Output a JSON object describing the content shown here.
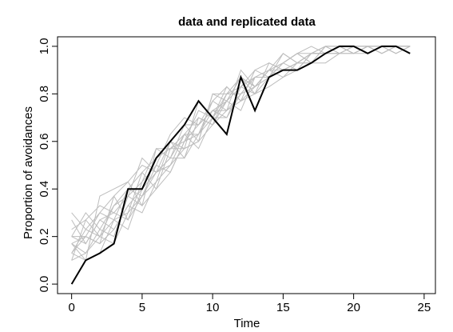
{
  "chart_data": {
    "type": "line",
    "title": "data and replicated data",
    "xlabel": "Time",
    "ylabel": "Proportion of avoidances",
    "xlim": [
      -1,
      25.8
    ],
    "ylim": [
      -0.04,
      1.04
    ],
    "xticks": [
      0,
      5,
      10,
      15,
      20,
      25
    ],
    "yticks": [
      0.0,
      0.2,
      0.4,
      0.6,
      0.8,
      1.0
    ],
    "xtick_labels": [
      "0",
      "5",
      "10",
      "15",
      "20",
      "25"
    ],
    "ytick_labels": [
      "0.0",
      "0.2",
      "0.4",
      "0.6",
      "0.8",
      "1.0"
    ],
    "grid": false,
    "colors": {
      "observed": "#000000",
      "replicated": "#bdbdbd"
    },
    "x": [
      0,
      1,
      2,
      3,
      4,
      5,
      6,
      7,
      8,
      9,
      10,
      11,
      12,
      13,
      14,
      15,
      16,
      17,
      18,
      19,
      20,
      21,
      22,
      23,
      24
    ],
    "observed": [
      0.0,
      0.1,
      0.13,
      0.17,
      0.4,
      0.4,
      0.53,
      0.6,
      0.67,
      0.77,
      0.7,
      0.63,
      0.87,
      0.73,
      0.87,
      0.9,
      0.9,
      0.93,
      0.97,
      1.0,
      1.0,
      0.97,
      1.0,
      1.0,
      0.97
    ],
    "replicated": [
      [
        0.17,
        0.13,
        0.2,
        0.27,
        0.3,
        0.37,
        0.43,
        0.5,
        0.57,
        0.6,
        0.67,
        0.73,
        0.77,
        0.8,
        0.83,
        0.87,
        0.9,
        0.93,
        0.93,
        0.97,
        0.97,
        1.0,
        0.97,
        1.0,
        1.0
      ],
      [
        0.13,
        0.2,
        0.17,
        0.23,
        0.33,
        0.4,
        0.47,
        0.53,
        0.53,
        0.63,
        0.7,
        0.7,
        0.8,
        0.83,
        0.87,
        0.9,
        0.93,
        0.93,
        0.97,
        1.0,
        0.97,
        0.97,
        1.0,
        0.97,
        1.0
      ],
      [
        0.2,
        0.17,
        0.27,
        0.3,
        0.27,
        0.43,
        0.5,
        0.47,
        0.6,
        0.67,
        0.73,
        0.77,
        0.73,
        0.87,
        0.9,
        0.87,
        0.93,
        0.97,
        0.97,
        0.97,
        1.0,
        1.0,
        1.0,
        1.0,
        0.97
      ],
      [
        0.1,
        0.13,
        0.23,
        0.33,
        0.37,
        0.33,
        0.4,
        0.57,
        0.63,
        0.57,
        0.7,
        0.8,
        0.83,
        0.8,
        0.87,
        0.93,
        0.9,
        0.97,
        1.0,
        0.97,
        0.97,
        1.0,
        0.97,
        1.0,
        1.0
      ],
      [
        0.23,
        0.27,
        0.2,
        0.17,
        0.3,
        0.47,
        0.53,
        0.6,
        0.53,
        0.7,
        0.67,
        0.77,
        0.87,
        0.83,
        0.9,
        0.93,
        0.97,
        0.93,
        0.97,
        1.0,
        1.0,
        0.97,
        1.0,
        1.0,
        1.0
      ],
      [
        0.17,
        0.1,
        0.13,
        0.27,
        0.4,
        0.37,
        0.47,
        0.5,
        0.63,
        0.63,
        0.77,
        0.73,
        0.8,
        0.87,
        0.87,
        0.9,
        0.93,
        0.97,
        0.97,
        0.97,
        1.0,
        1.0,
        0.97,
        1.0,
        0.97
      ],
      [
        0.13,
        0.23,
        0.3,
        0.27,
        0.23,
        0.4,
        0.53,
        0.57,
        0.6,
        0.73,
        0.7,
        0.83,
        0.77,
        0.83,
        0.9,
        0.9,
        0.93,
        0.93,
        1.0,
        1.0,
        0.97,
        1.0,
        1.0,
        0.97,
        1.0
      ],
      [
        0.2,
        0.2,
        0.17,
        0.37,
        0.43,
        0.5,
        0.47,
        0.53,
        0.67,
        0.67,
        0.73,
        0.7,
        0.83,
        0.9,
        0.87,
        0.93,
        0.97,
        0.97,
        0.97,
        1.0,
        1.0,
        0.97,
        1.0,
        1.0,
        1.0
      ],
      [
        0.27,
        0.17,
        0.27,
        0.23,
        0.33,
        0.3,
        0.43,
        0.6,
        0.57,
        0.6,
        0.8,
        0.77,
        0.87,
        0.8,
        0.93,
        0.9,
        0.9,
        0.97,
        1.0,
        0.97,
        1.0,
        1.0,
        1.0,
        1.0,
        0.97
      ],
      [
        0.1,
        0.27,
        0.33,
        0.3,
        0.37,
        0.43,
        0.57,
        0.53,
        0.63,
        0.7,
        0.67,
        0.8,
        0.8,
        0.87,
        0.87,
        0.97,
        0.93,
        0.97,
        0.97,
        1.0,
        0.97,
        1.0,
        0.97,
        1.0,
        1.0
      ],
      [
        0.3,
        0.23,
        0.2,
        0.33,
        0.4,
        0.47,
        0.4,
        0.47,
        0.6,
        0.63,
        0.73,
        0.73,
        0.9,
        0.83,
        0.9,
        0.93,
        0.97,
        0.93,
        1.0,
        1.0,
        1.0,
        0.97,
        1.0,
        1.0,
        1.0
      ],
      [
        0.17,
        0.2,
        0.3,
        0.37,
        0.27,
        0.37,
        0.5,
        0.63,
        0.7,
        0.67,
        0.77,
        0.83,
        0.77,
        0.9,
        0.93,
        0.9,
        0.93,
        0.97,
        0.97,
        0.97,
        1.0,
        1.0,
        1.0,
        0.97,
        1.0
      ],
      [
        0.13,
        0.1,
        0.37,
        0.4,
        0.43,
        0.33,
        0.57,
        0.57,
        0.57,
        0.77,
        0.7,
        0.77,
        0.83,
        0.87,
        0.87,
        0.93,
        0.97,
        1.0,
        0.97,
        1.0,
        0.97,
        1.0,
        1.0,
        1.0,
        0.97
      ],
      [
        0.2,
        0.3,
        0.23,
        0.2,
        0.37,
        0.53,
        0.47,
        0.6,
        0.67,
        0.6,
        0.8,
        0.8,
        0.87,
        0.83,
        0.9,
        0.97,
        0.93,
        0.97,
        1.0,
        1.0,
        1.0,
        1.0,
        0.97,
        1.0,
        1.0
      ]
    ]
  }
}
